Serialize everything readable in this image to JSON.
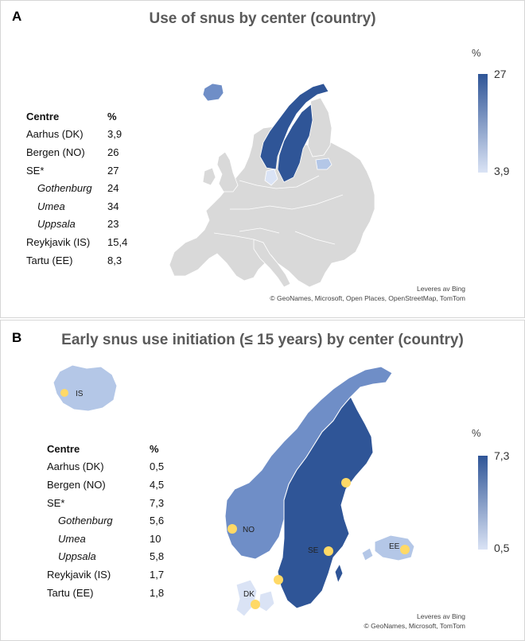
{
  "colors": {
    "high": "#2f5597",
    "mid": "#6f8ec7",
    "low": "#dae3f5",
    "nodata": "#d9d9d9",
    "marker": "#ffd966"
  },
  "panel_a": {
    "letter": "A",
    "title": "Use of snus by center (country)",
    "table_header": [
      "Centre",
      "%"
    ],
    "rows": [
      {
        "centre": "Aarhus (DK)",
        "value": "3,9"
      },
      {
        "centre": "Bergen (NO)",
        "value": "26"
      },
      {
        "centre": "SE*",
        "value": "27"
      },
      {
        "centre": "Gothenburg",
        "value": "24"
      },
      {
        "centre": "Umea",
        "value": "34"
      },
      {
        "centre": "Uppsala",
        "value": "23"
      },
      {
        "centre": "Reykjavik (IS)",
        "value": "15,4"
      },
      {
        "centre": "Tartu (EE)",
        "value": "8,3"
      }
    ],
    "legend": {
      "unit": "%",
      "max": "27",
      "min": "3,9"
    },
    "credit_line1": "Leveres av Bing",
    "credit_line2": "© GeoNames, Microsoft, Open Places, OpenStreetMap, TomTom"
  },
  "panel_b": {
    "letter": "B",
    "title": "Early snus use initiation (≤ 15 years) by center (country)",
    "table_header": [
      "Centre",
      "%"
    ],
    "rows": [
      {
        "centre": "Aarhus (DK)",
        "value": "0,5"
      },
      {
        "centre": "Bergen (NO)",
        "value": "4,5"
      },
      {
        "centre": "SE*",
        "value": "7,3"
      },
      {
        "centre": "Gothenburg",
        "value": "5,6"
      },
      {
        "centre": "Umea",
        "value": "10"
      },
      {
        "centre": "Uppsala",
        "value": "5,8"
      },
      {
        "centre": "Reykjavik (IS)",
        "value": "1,7"
      },
      {
        "centre": "Tartu (EE)",
        "value": "1,8"
      }
    ],
    "legend": {
      "unit": "%",
      "max": "7,3",
      "min": "0,5"
    },
    "map_labels": {
      "is": "IS",
      "no": "NO",
      "se": "SE",
      "ee": "EE",
      "dk": "DK"
    },
    "credit_line1": "Leveres av Bing",
    "credit_line2": "© GeoNames, Microsoft, TomTom"
  }
}
